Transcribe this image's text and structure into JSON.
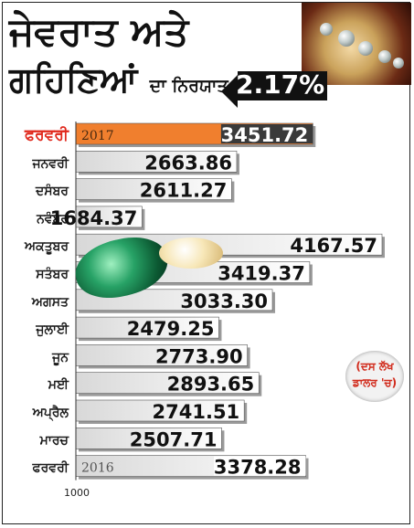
{
  "title_line1": "ਜੇਵਰਾਤ ਅਤੇ",
  "title_line2_big": "ਗਹਿਣਿਆਂ",
  "title_line2_small": "ਦਾ ਨਿਰਯਾਤ",
  "change_pct": "2.17%",
  "unit_line1": "(ਦਸ ਲੱਖ",
  "unit_line2": "ਡਾਲਰ 'ਚ)",
  "colors": {
    "highlight_bar": "#f07f2e",
    "highlight_label": "#e0281c",
    "bar_fill_end": "#ffffff",
    "bar_fill_start": "#d8d8d8",
    "dark_bar": "#3a3a3a"
  },
  "chart_data": {
    "type": "bar",
    "orientation": "horizontal",
    "categories": [
      "ਫਰਵਰੀ",
      "ਜਨਵਰੀ",
      "ਦਸੰਬਰ",
      "ਨਵੰਬਰ",
      "ਅਕਤੂਬਰ",
      "ਸਤੰਬਰ",
      "ਅਗਸਤ",
      "ਜੁਲਾਈ",
      "ਜੂਨ",
      "ਮਈ",
      "ਅਪ੍ਰੈਲ",
      "ਮਾਰਚ",
      "ਫਰਵਰੀ"
    ],
    "values": [
      3451.72,
      2663.86,
      2611.27,
      1684.37,
      4167.57,
      3419.37,
      3033.3,
      2479.25,
      2773.9,
      2893.65,
      2741.51,
      2507.71,
      3378.28
    ],
    "value_labels": [
      "3451.72",
      "2663.86",
      "2611.27",
      "1684.37",
      "4167.57",
      "3419.37",
      "3033.30",
      "2479.25",
      "2773.90",
      "2893.65",
      "2741.51",
      "2507.71",
      "3378.28"
    ],
    "year_labels": [
      "2017",
      "",
      "",
      "",
      "",
      "",
      "",
      "",
      "",
      "",
      "",
      "",
      "2016"
    ],
    "highlight_index": 0,
    "axis_start_label": "1000",
    "xlim": [
      1000,
      4300
    ]
  }
}
